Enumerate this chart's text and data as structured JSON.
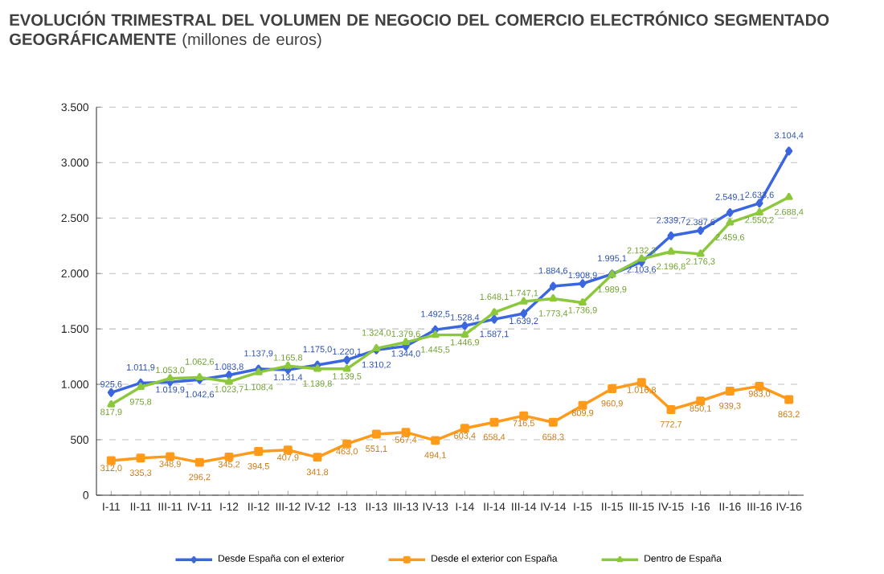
{
  "chart_data": {
    "type": "line",
    "title": "**EVOLUCIÓN TRIMESTRAL DEL VOLUMEN DE NEGOCIO DEL COMERCIO ELECTRÓNICO SEGMENTADO GEOGRÁFICAMENTE** (millones de euros)",
    "categories": [
      "I-11",
      "II-11",
      "III-11",
      "IV-11",
      "I-12",
      "II-12",
      "III-12",
      "IV-12",
      "I-13",
      "II-13",
      "III-13",
      "IV-13",
      "I-14",
      "II-14",
      "III-14",
      "IV-14",
      "I-15",
      "II-15",
      "III-15",
      "IV-15",
      "I-16",
      "II-16",
      "III-16",
      "IV-16"
    ],
    "series": [
      {
        "name": "Desde España con el exterior",
        "color": "#3a66e0",
        "marker": "diamond",
        "values": [
          925.6,
          1011.9,
          1019.9,
          1042.6,
          1083.8,
          1137.9,
          1131.4,
          1175.0,
          1220.1,
          1310.2,
          1344.0,
          1492.5,
          1528.4,
          1587.1,
          1639.2,
          1884.6,
          1908.9,
          1995.1,
          2103.6,
          2339.7,
          2387.6,
          2549.1,
          2633.6,
          3104.4
        ],
        "value_labels": [
          "925,6",
          "1.011,9",
          "1.019,9",
          "1.042,6",
          "1.083,8",
          "1.137,9",
          "1.131,4",
          "1.175,0",
          "1.220,1",
          "1.310,2",
          "1.344,0",
          "1.492,5",
          "1.528,4",
          "1.587,1",
          "1.639,2",
          "1.884,6",
          "1.908,9",
          "1.995,1",
          "2.103,6",
          "2.339,7",
          "2.387,6",
          "2.549,1",
          "2.633,6",
          "3.104,4"
        ]
      },
      {
        "name": "Desde el exterior con España",
        "color": "#ff9a1a",
        "marker": "square",
        "values": [
          312.0,
          335.3,
          348.9,
          296.2,
          345.2,
          394.5,
          407.9,
          341.8,
          463.0,
          551.1,
          567.4,
          494.1,
          603.4,
          658.4,
          716.5,
          658.3,
          809.9,
          960.9,
          1016.8,
          772.7,
          850.1,
          939.3,
          983.0,
          863.2
        ],
        "value_labels": [
          "312,0",
          "335,3",
          "348,9",
          "296,2",
          "345,2",
          "394,5",
          "407,9",
          "341,8",
          "463,0",
          "551,1",
          "567,4",
          "494,1",
          "603,4",
          "658,4",
          "716,5",
          "658,3",
          "809,9",
          "960,9",
          "1.016,8",
          "772,7",
          "850,1",
          "939,3",
          "983,0",
          "863,2"
        ]
      },
      {
        "name": "Dentro de España",
        "color": "#8cc83c",
        "marker": "triangle",
        "values": [
          817.9,
          975.8,
          1053.0,
          1062.6,
          1023.7,
          1108.4,
          1165.8,
          1139.8,
          1139.5,
          1324.0,
          1379.6,
          1445.5,
          1446.9,
          1648.1,
          1747.1,
          1773.4,
          1736.9,
          1989.9,
          2132.2,
          2196.8,
          2176.3,
          2459.6,
          2550.2,
          2688.4
        ],
        "value_labels": [
          "817,9",
          "975,8",
          "1.053,0",
          "1.062,6",
          "1.023,7",
          "1.108,4",
          "1.165,8",
          "1.139,8",
          "1.139,5",
          "1.324,0",
          "1.379,6",
          "1.445,5",
          "1.446,9",
          "1.648,1",
          "1.747,1",
          "1.773,4",
          "1.736,9",
          "1.989,9",
          "2.132,2",
          "2.196,8",
          "2.176,3",
          "2.459,6",
          "2.550,2",
          "2.688,4"
        ]
      }
    ],
    "ylim": [
      0,
      3500
    ],
    "yticks": [
      0,
      {
        "value": 500,
        "label": "500"
      },
      {
        "value": 1000,
        "label": "1.000"
      },
      {
        "value": 1500,
        "label": "1.500"
      },
      {
        "value": 2000,
        "label": "2.000"
      },
      {
        "value": 2500,
        "label": "2.500"
      },
      {
        "value": 3000,
        "label": "3.000"
      },
      {
        "value": 3500,
        "label": "3.500"
      }
    ],
    "grid": "y",
    "legend": "bottom",
    "line_style": "solid"
  }
}
